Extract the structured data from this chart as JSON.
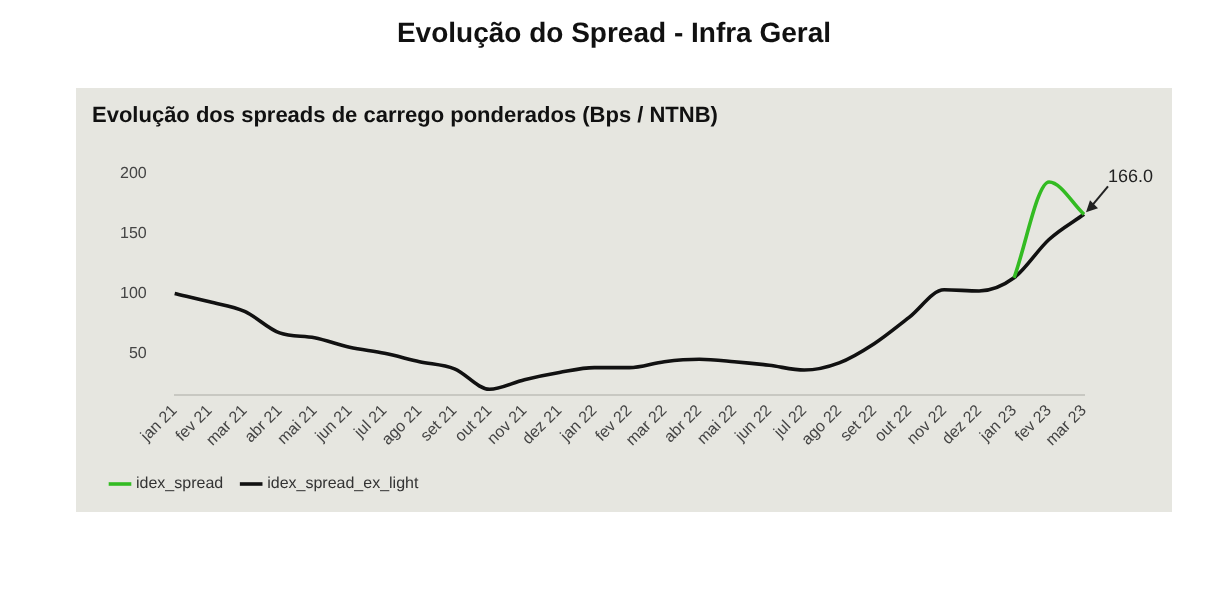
{
  "chart_data": {
    "type": "line",
    "title": "Evolução do Spread - Infra Geral",
    "subtitle": "Evolução dos spreads de carrego ponderados (Bps / NTNB)",
    "categories": [
      "jan 21",
      "fev 21",
      "mar 21",
      "abr 21",
      "mai 21",
      "jun 21",
      "jul 21",
      "ago 21",
      "set 21",
      "out 21",
      "nov 21",
      "dez 21",
      "jan 22",
      "fev 22",
      "mar 22",
      "abr 22",
      "mai 22",
      "jun 22",
      "jul 22",
      "ago 22",
      "set 22",
      "out 22",
      "nov 22",
      "dez 22",
      "jan 23",
      "fev 23",
      "mar 23"
    ],
    "series": [
      {
        "name": "idex_spread",
        "color": "#33bb22",
        "values": [
          null,
          null,
          null,
          null,
          null,
          null,
          null,
          null,
          null,
          null,
          null,
          null,
          null,
          null,
          null,
          null,
          null,
          null,
          null,
          null,
          null,
          null,
          null,
          null,
          113,
          193,
          166
        ]
      },
      {
        "name": "idex_spread_ex_light",
        "color": "#111111",
        "values": [
          100,
          93,
          85,
          67,
          63,
          55,
          50,
          43,
          37,
          20,
          28,
          34,
          38,
          38,
          43,
          45,
          43,
          40,
          36,
          42,
          58,
          80,
          103,
          102,
          113,
          145,
          166
        ]
      }
    ],
    "ylim": [
      15,
      200
    ],
    "yticks": [
      50,
      100,
      150,
      200
    ],
    "grid": false,
    "legend": "bottom left",
    "marker": "none",
    "line_style": "solid",
    "annotations": [
      {
        "text": "166.0",
        "x": "mar 23",
        "y": 166
      }
    ]
  }
}
